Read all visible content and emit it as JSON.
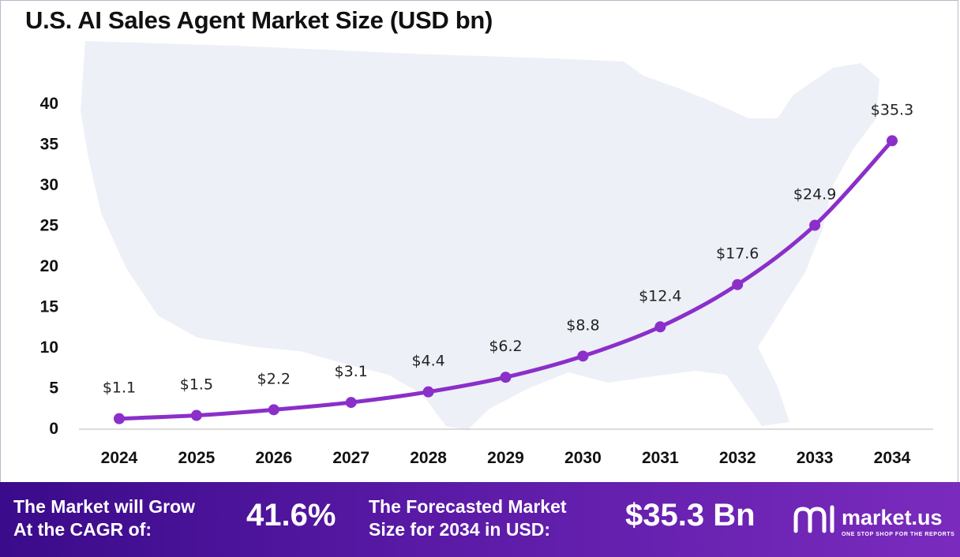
{
  "chart_data": {
    "type": "line",
    "title": "U.S. AI Sales Agent Market Size (USD bn)",
    "categories": [
      "2024",
      "2025",
      "2026",
      "2027",
      "2028",
      "2029",
      "2030",
      "2031",
      "2032",
      "2033",
      "2034"
    ],
    "values": [
      1.1,
      1.5,
      2.2,
      3.1,
      4.4,
      6.2,
      8.8,
      12.4,
      17.6,
      24.9,
      35.3
    ],
    "data_labels": [
      "$1.1",
      "$1.5",
      "$2.2",
      "$3.1",
      "$4.4",
      "$6.2",
      "$8.8",
      "$12.4",
      "$17.6",
      "$24.9",
      "$35.3"
    ],
    "yticks": [
      0,
      5,
      10,
      15,
      20,
      25,
      30,
      35,
      40
    ],
    "ylim": [
      0,
      40
    ],
    "xlabel": "",
    "ylabel": "",
    "grid": false,
    "legend": "none",
    "line_color": "#8b2fc9"
  },
  "banner": {
    "cagr_label_line1": "The Market will Grow",
    "cagr_label_line2": "At the CAGR of:",
    "cagr_value": "41.6%",
    "forecast_label_line1": "The Forecasted Market",
    "forecast_label_line2": "Size for 2034 in USD:",
    "forecast_value": "$35.3 Bn"
  },
  "logo": {
    "name": "market.us",
    "tagline": "ONE STOP SHOP FOR THE REPORTS"
  }
}
